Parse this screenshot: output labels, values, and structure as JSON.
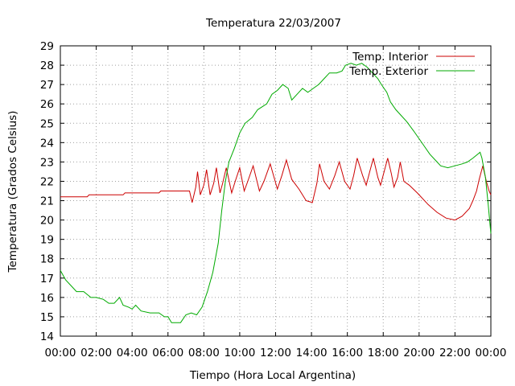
{
  "chart_data": {
    "type": "line",
    "title": "Temperatura 22/03/2007",
    "xlabel": "Tiempo (Hora Local Argentina)",
    "ylabel": "Temperatura (Grados Celsius)",
    "xlim": [
      0,
      24
    ],
    "ylim": [
      14,
      29
    ],
    "grid": true,
    "legend_position": "top-right",
    "x_ticks": [
      {
        "value": 0,
        "label": "00:00"
      },
      {
        "value": 2,
        "label": "02:00"
      },
      {
        "value": 4,
        "label": "04:00"
      },
      {
        "value": 6,
        "label": "06:00"
      },
      {
        "value": 8,
        "label": "08:00"
      },
      {
        "value": 10,
        "label": "10:00"
      },
      {
        "value": 12,
        "label": "12:00"
      },
      {
        "value": 14,
        "label": "14:00"
      },
      {
        "value": 16,
        "label": "16:00"
      },
      {
        "value": 18,
        "label": "18:00"
      },
      {
        "value": 20,
        "label": "20:00"
      },
      {
        "value": 22,
        "label": "22:00"
      },
      {
        "value": 24,
        "label": "00:00"
      }
    ],
    "y_ticks": [
      {
        "value": 14,
        "label": "14"
      },
      {
        "value": 15,
        "label": "15"
      },
      {
        "value": 16,
        "label": "16"
      },
      {
        "value": 17,
        "label": "17"
      },
      {
        "value": 18,
        "label": "18"
      },
      {
        "value": 19,
        "label": "19"
      },
      {
        "value": 20,
        "label": "20"
      },
      {
        "value": 21,
        "label": "21"
      },
      {
        "value": 22,
        "label": "22"
      },
      {
        "value": 23,
        "label": "23"
      },
      {
        "value": 24,
        "label": "24"
      },
      {
        "value": 25,
        "label": "25"
      },
      {
        "value": 26,
        "label": "26"
      },
      {
        "value": 27,
        "label": "27"
      },
      {
        "value": 28,
        "label": "28"
      },
      {
        "value": 29,
        "label": "29"
      }
    ],
    "series": [
      {
        "name": "Temp. Interior",
        "color": "#cc0000",
        "points": [
          [
            0,
            21.2
          ],
          [
            1.5,
            21.2
          ],
          [
            1.6,
            21.3
          ],
          [
            3.5,
            21.3
          ],
          [
            3.6,
            21.4
          ],
          [
            5.5,
            21.4
          ],
          [
            5.6,
            21.5
          ],
          [
            7.2,
            21.5
          ],
          [
            7.35,
            20.9
          ],
          [
            7.55,
            21.7
          ],
          [
            7.65,
            22.5
          ],
          [
            7.8,
            21.3
          ],
          [
            8.0,
            21.8
          ],
          [
            8.15,
            22.6
          ],
          [
            8.35,
            21.3
          ],
          [
            8.55,
            21.9
          ],
          [
            8.7,
            22.7
          ],
          [
            8.9,
            21.4
          ],
          [
            9.05,
            21.9
          ],
          [
            9.25,
            22.7
          ],
          [
            9.55,
            21.4
          ],
          [
            9.75,
            22.0
          ],
          [
            10.0,
            22.7
          ],
          [
            10.25,
            21.5
          ],
          [
            10.45,
            22.0
          ],
          [
            10.75,
            22.8
          ],
          [
            11.1,
            21.5
          ],
          [
            11.35,
            22.0
          ],
          [
            11.7,
            22.9
          ],
          [
            12.1,
            21.6
          ],
          [
            12.35,
            22.3
          ],
          [
            12.6,
            23.1
          ],
          [
            12.9,
            22.1
          ],
          [
            13.3,
            21.6
          ],
          [
            13.7,
            21.0
          ],
          [
            14.05,
            20.9
          ],
          [
            14.3,
            21.9
          ],
          [
            14.45,
            22.9
          ],
          [
            14.7,
            22.0
          ],
          [
            15.0,
            21.6
          ],
          [
            15.3,
            22.3
          ],
          [
            15.55,
            23.0
          ],
          [
            15.85,
            22.0
          ],
          [
            16.15,
            21.6
          ],
          [
            16.35,
            22.3
          ],
          [
            16.55,
            23.2
          ],
          [
            16.85,
            22.3
          ],
          [
            17.05,
            21.8
          ],
          [
            17.25,
            22.5
          ],
          [
            17.45,
            23.2
          ],
          [
            17.7,
            22.2
          ],
          [
            17.85,
            21.8
          ],
          [
            18.05,
            22.5
          ],
          [
            18.25,
            23.2
          ],
          [
            18.45,
            22.4
          ],
          [
            18.6,
            21.7
          ],
          [
            18.8,
            22.2
          ],
          [
            18.95,
            23.0
          ],
          [
            19.15,
            22.0
          ],
          [
            19.45,
            21.8
          ],
          [
            19.9,
            21.4
          ],
          [
            20.5,
            20.8
          ],
          [
            21.0,
            20.4
          ],
          [
            21.5,
            20.1
          ],
          [
            22.0,
            20.0
          ],
          [
            22.4,
            20.2
          ],
          [
            22.8,
            20.6
          ],
          [
            23.0,
            21.0
          ],
          [
            23.2,
            21.5
          ],
          [
            23.35,
            22.1
          ],
          [
            23.55,
            22.8
          ],
          [
            23.75,
            22.0
          ],
          [
            23.9,
            21.5
          ],
          [
            24.0,
            21.3
          ]
        ]
      },
      {
        "name": "Temp. Exterior",
        "color": "#00aa00",
        "points": [
          [
            0,
            17.4
          ],
          [
            0.3,
            16.9
          ],
          [
            0.6,
            16.6
          ],
          [
            0.9,
            16.3
          ],
          [
            1.3,
            16.3
          ],
          [
            1.7,
            16.0
          ],
          [
            2.0,
            16.0
          ],
          [
            2.4,
            15.9
          ],
          [
            2.7,
            15.7
          ],
          [
            3.0,
            15.7
          ],
          [
            3.3,
            16.0
          ],
          [
            3.5,
            15.6
          ],
          [
            3.8,
            15.5
          ],
          [
            4.0,
            15.4
          ],
          [
            4.2,
            15.6
          ],
          [
            4.5,
            15.3
          ],
          [
            5.0,
            15.2
          ],
          [
            5.5,
            15.2
          ],
          [
            5.8,
            15.0
          ],
          [
            6.0,
            15.0
          ],
          [
            6.2,
            14.7
          ],
          [
            6.7,
            14.7
          ],
          [
            7.0,
            15.1
          ],
          [
            7.3,
            15.2
          ],
          [
            7.6,
            15.1
          ],
          [
            7.9,
            15.5
          ],
          [
            8.2,
            16.3
          ],
          [
            8.5,
            17.3
          ],
          [
            8.8,
            18.8
          ],
          [
            9.0,
            20.5
          ],
          [
            9.2,
            22.0
          ],
          [
            9.4,
            23.0
          ],
          [
            9.7,
            23.7
          ],
          [
            10.0,
            24.5
          ],
          [
            10.3,
            25.0
          ],
          [
            10.7,
            25.3
          ],
          [
            11.0,
            25.7
          ],
          [
            11.5,
            26.0
          ],
          [
            11.8,
            26.5
          ],
          [
            12.1,
            26.7
          ],
          [
            12.4,
            27.0
          ],
          [
            12.7,
            26.8
          ],
          [
            12.9,
            26.2
          ],
          [
            13.2,
            26.5
          ],
          [
            13.5,
            26.8
          ],
          [
            13.8,
            26.6
          ],
          [
            14.1,
            26.8
          ],
          [
            14.4,
            27.0
          ],
          [
            14.7,
            27.3
          ],
          [
            15.0,
            27.6
          ],
          [
            15.4,
            27.6
          ],
          [
            15.7,
            27.7
          ],
          [
            15.9,
            28.0
          ],
          [
            16.2,
            28.1
          ],
          [
            16.5,
            28.0
          ],
          [
            16.8,
            28.1
          ],
          [
            17.1,
            27.9
          ],
          [
            17.4,
            27.6
          ],
          [
            17.7,
            27.3
          ],
          [
            17.9,
            27.0
          ],
          [
            18.2,
            26.6
          ],
          [
            18.4,
            26.1
          ],
          [
            18.7,
            25.7
          ],
          [
            19.0,
            25.4
          ],
          [
            19.3,
            25.1
          ],
          [
            19.7,
            24.6
          ],
          [
            20.0,
            24.2
          ],
          [
            20.3,
            23.8
          ],
          [
            20.6,
            23.4
          ],
          [
            20.9,
            23.1
          ],
          [
            21.2,
            22.8
          ],
          [
            21.6,
            22.7
          ],
          [
            22.0,
            22.8
          ],
          [
            22.4,
            22.9
          ],
          [
            22.7,
            23.0
          ],
          [
            23.0,
            23.2
          ],
          [
            23.4,
            23.5
          ],
          [
            23.5,
            23.2
          ],
          [
            23.7,
            22.2
          ],
          [
            23.85,
            20.8
          ],
          [
            24.0,
            19.3
          ]
        ]
      }
    ]
  }
}
